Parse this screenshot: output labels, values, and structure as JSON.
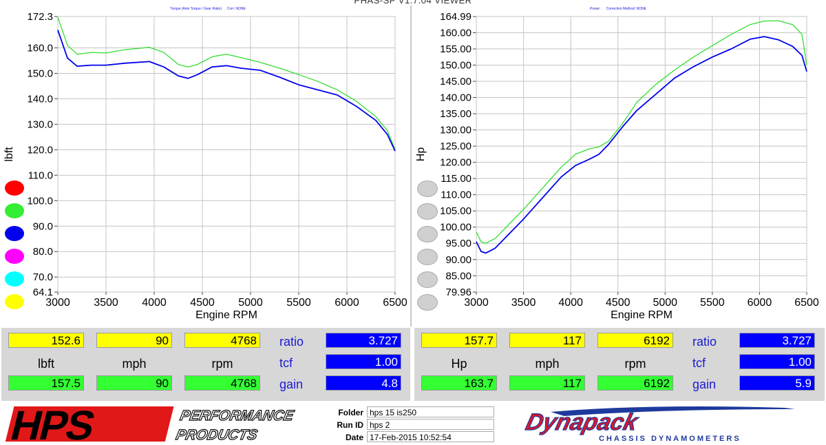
{
  "app": {
    "title": "PHAS-SP V1.7.04  VIEWER"
  },
  "colors": {
    "green": "#33dd33",
    "blue": "#0000ee",
    "yellow_box": "#ffff00",
    "green_box": "#33ff33",
    "blue_box": "#0000ff"
  },
  "left_chart": {
    "header_a": "Torque (Axle Torque / Gear Ratio)",
    "header_b": "Corr: NONE",
    "swatch_colors": [
      "#ff0000",
      "#33ee33",
      "#0000ee",
      "#ff00ff",
      "#00ffff",
      "#ffff00"
    ]
  },
  "right_chart": {
    "header_a": "Power:",
    "header_b": "Correction Method: NONE",
    "swatch_colors": [
      "#d0d0d0",
      "#d0d0d0",
      "#d0d0d0",
      "#d0d0d0",
      "#d0d0d0",
      "#d0d0d0"
    ]
  },
  "chart_data": [
    {
      "type": "line",
      "title": "",
      "xlabel": "Engine RPM",
      "ylabel": "lbft",
      "xlim": [
        3000,
        6500
      ],
      "ylim": [
        64.1,
        172.3
      ],
      "xticks": [
        "3000",
        "3500",
        "4000",
        "4500",
        "5000",
        "5500",
        "6000",
        "6500"
      ],
      "yticks": [
        "172.3",
        "160.0",
        "150.0",
        "140.0",
        "130.0",
        "120.0",
        "110.0",
        "100.0",
        "90.0",
        "80.0",
        "70.0",
        "64.1"
      ],
      "ytick_values": [
        172.3,
        160,
        150,
        140,
        130,
        120,
        110,
        100,
        90,
        80,
        70,
        64.1
      ],
      "grid": true,
      "series": [
        {
          "color": "green",
          "x": [
            3000,
            3100,
            3200,
            3350,
            3500,
            3700,
            3950,
            4100,
            4250,
            4350,
            4450,
            4600,
            4750,
            4900,
            5100,
            5300,
            5500,
            5700,
            5900,
            6100,
            6300,
            6420,
            6500
          ],
          "values": [
            172.0,
            161.0,
            157.5,
            158.2,
            158.0,
            159.3,
            160.2,
            158.2,
            153.5,
            152.5,
            153.5,
            156.5,
            157.5,
            156.2,
            154.3,
            152.0,
            149.5,
            146.8,
            143.5,
            139.0,
            133.0,
            127.5,
            120.0
          ]
        },
        {
          "color": "blue",
          "x": [
            3000,
            3100,
            3200,
            3350,
            3500,
            3700,
            3950,
            4100,
            4250,
            4350,
            4450,
            4600,
            4750,
            4900,
            5100,
            5300,
            5500,
            5700,
            5900,
            6100,
            6300,
            6420,
            6500
          ],
          "values": [
            167.0,
            156.0,
            152.8,
            153.2,
            153.2,
            154.0,
            154.6,
            152.5,
            149.0,
            148.0,
            149.5,
            152.5,
            153.0,
            152.0,
            151.2,
            148.5,
            145.5,
            143.5,
            141.5,
            137.0,
            131.5,
            126.0,
            119.5
          ]
        }
      ]
    },
    {
      "type": "line",
      "title": "",
      "xlabel": "Engine RPM",
      "ylabel": "Hp",
      "xlim": [
        3000,
        6500
      ],
      "ylim": [
        79.96,
        164.99
      ],
      "xticks": [
        "3000",
        "3500",
        "4000",
        "4500",
        "5000",
        "5500",
        "6000",
        "6500"
      ],
      "yticks": [
        "164.99",
        "160.00",
        "155.00",
        "150.00",
        "145.00",
        "140.00",
        "135.00",
        "130.00",
        "125.00",
        "120.00",
        "115.00",
        "110.00",
        "105.00",
        "100.00",
        "95.00",
        "90.00",
        "85.00",
        "79.96"
      ],
      "ytick_values": [
        164.99,
        160,
        155,
        150,
        145,
        140,
        135,
        130,
        125,
        120,
        115,
        110,
        105,
        100,
        95,
        90,
        85,
        79.96
      ],
      "grid": true,
      "series": [
        {
          "color": "green",
          "x": [
            3000,
            3050,
            3100,
            3200,
            3350,
            3500,
            3700,
            3900,
            4050,
            4200,
            4300,
            4400,
            4550,
            4700,
            4900,
            5100,
            5300,
            5500,
            5700,
            5900,
            6050,
            6200,
            6350,
            6450,
            6500
          ],
          "values": [
            98.5,
            95.5,
            95.0,
            96.5,
            101.0,
            105.5,
            112.0,
            118.5,
            122.5,
            124.2,
            124.8,
            126.5,
            132.0,
            138.5,
            144.0,
            148.5,
            152.5,
            156.0,
            159.5,
            162.5,
            163.6,
            163.7,
            162.5,
            159.5,
            150.0
          ]
        },
        {
          "color": "blue",
          "x": [
            3000,
            3050,
            3100,
            3200,
            3350,
            3500,
            3700,
            3900,
            4050,
            4200,
            4300,
            4400,
            4550,
            4700,
            4900,
            5100,
            5300,
            5500,
            5700,
            5900,
            6050,
            6200,
            6350,
            6450,
            6500
          ],
          "values": [
            95.5,
            92.5,
            92.0,
            93.5,
            98.0,
            102.5,
            109.0,
            115.5,
            119.0,
            121.0,
            122.5,
            125.5,
            131.0,
            136.0,
            141.0,
            146.0,
            149.5,
            152.5,
            155.0,
            158.0,
            158.8,
            157.8,
            155.8,
            153.0,
            148.0
          ]
        }
      ]
    }
  ],
  "readout_left": {
    "yellow": [
      "152.6",
      "90",
      "4768"
    ],
    "units": [
      "lbft",
      "mph",
      "rpm"
    ],
    "green": [
      "157.5",
      "90",
      "4768"
    ],
    "names": [
      "ratio",
      "tcf",
      "gain"
    ],
    "blue": [
      "3.727",
      "1.00",
      "4.8"
    ]
  },
  "readout_right": {
    "yellow": [
      "157.7",
      "117",
      "6192"
    ],
    "units": [
      "Hp",
      "mph",
      "rpm"
    ],
    "green": [
      "163.7",
      "117",
      "6192"
    ],
    "names": [
      "ratio",
      "tcf",
      "gain"
    ],
    "blue": [
      "3.727",
      "1.00",
      "5.9"
    ]
  },
  "footer": {
    "hps_logo": "HPS",
    "hps_sub1": "PERFORMANCE",
    "hps_sub2": "PRODUCTS",
    "folder_label": "Folder",
    "folder_value": "hps 15 is250",
    "runid_label": "Run ID",
    "runid_value": "hps 2",
    "date_label": "Date",
    "date_value": "17-Feb-2015   10:52:54",
    "dynapack_logo": "Dynapack",
    "dynapack_sub": "CHASSIS   DYNAMOMETERS"
  }
}
